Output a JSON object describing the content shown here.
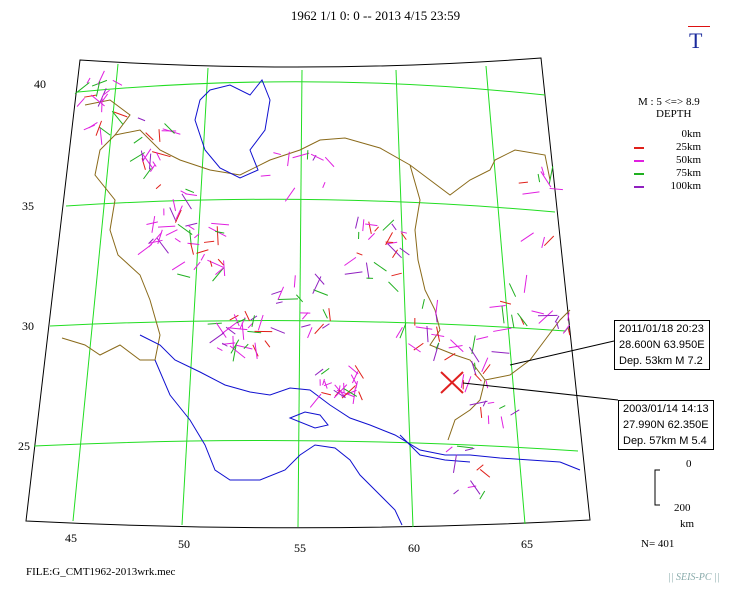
{
  "title": "1962 1/1 0: 0 -- 2013 4/15 23:59",
  "north_mark": "T",
  "lat_labels": [
    "40",
    "35",
    "30",
    "25"
  ],
  "lon_labels": [
    "45",
    "50",
    "55",
    "60",
    "65"
  ],
  "legend": {
    "magnitude": "M : 5 <=> 8.9",
    "depth_title": "DEPTH",
    "rows": [
      {
        "label": "0km",
        "color": ""
      },
      {
        "label": "25km",
        "color": "#e0201a"
      },
      {
        "label": "50km",
        "color": "#e020e0"
      },
      {
        "label": "75km",
        "color": "#20b020"
      },
      {
        "label": "100km",
        "color": "#9020c0"
      }
    ]
  },
  "callouts": [
    {
      "date": "2011/01/18 20:23",
      "loc": "28.600N  63.950E",
      "info": "Dep. 53km   M 7.2"
    },
    {
      "date": "2003/01/14 14:13",
      "loc": "27.990N  62.350E",
      "info": "Dep. 57km   M 5.4"
    }
  ],
  "scale": {
    "top": "0",
    "bottom": "200",
    "unit": "km"
  },
  "count": "N= 401",
  "file": "FILE:G_CMT1962-2013wrk.mec",
  "watermark": "|| SEIS-PC ||",
  "colors": {
    "grid": "#22dd22",
    "coast": "#1010d0",
    "border": "#8a6a1a",
    "frame": "#000000",
    "marker": "#e02020"
  }
}
